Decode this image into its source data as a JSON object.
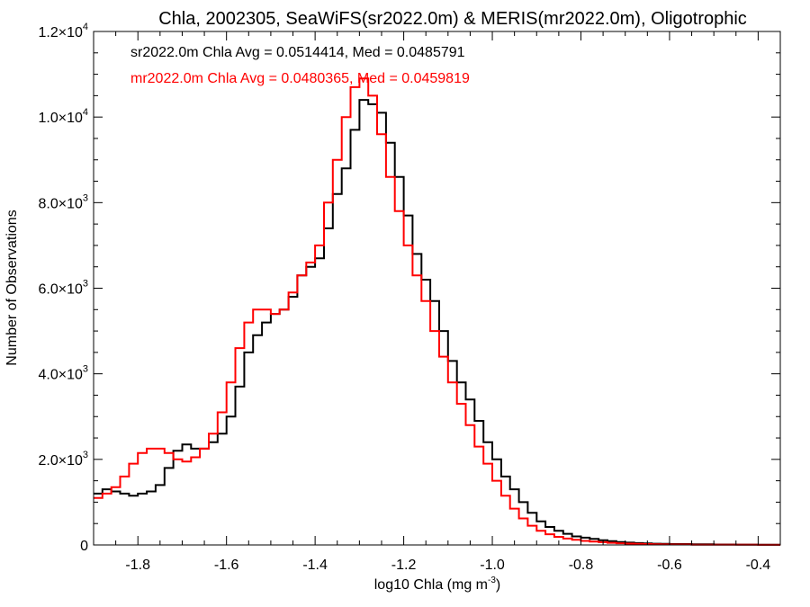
{
  "chart_data": {
    "type": "line",
    "title": "Chla, 2002305, SeaWiFS(sr2022.0m) & MERIS(mr2022.0m), Oligotrophic",
    "xlabel": "log10 Chla (mg m",
    "xlabel_sup": "-3",
    "xlabel_close": ")",
    "ylabel": "Number of Observations",
    "xlim": [
      -1.9,
      -0.35
    ],
    "ylim": [
      0,
      12000
    ],
    "x_ticks": [
      {
        "value": -1.8,
        "label": "-1.8"
      },
      {
        "value": -1.6,
        "label": "-1.6"
      },
      {
        "value": -1.4,
        "label": "-1.4"
      },
      {
        "value": -1.2,
        "label": "-1.2"
      },
      {
        "value": -1.0,
        "label": "-1.0"
      },
      {
        "value": -0.8,
        "label": "-0.8"
      },
      {
        "value": -0.6,
        "label": "-0.6"
      },
      {
        "value": -0.4,
        "label": "-0.4"
      }
    ],
    "y_ticks": [
      {
        "value": 0,
        "label": "0",
        "sup": ""
      },
      {
        "value": 2000,
        "label": "2.0×10",
        "sup": "3"
      },
      {
        "value": 4000,
        "label": "4.0×10",
        "sup": "3"
      },
      {
        "value": 6000,
        "label": "6.0×10",
        "sup": "3"
      },
      {
        "value": 8000,
        "label": "8.0×10",
        "sup": "3"
      },
      {
        "value": 10000,
        "label": "1.0×10",
        "sup": "4"
      },
      {
        "value": 12000,
        "label": "1.2×10",
        "sup": "4"
      }
    ],
    "annotations": [
      {
        "text": "sr2022.0m Chla Avg = 0.0514414, Med = 0.0485791",
        "color": "#000000"
      },
      {
        "text": "mr2022.0m Chla Avg = 0.0480365, Med = 0.0459819",
        "color": "#ff0000"
      }
    ],
    "series": [
      {
        "color": "#000000",
        "points": [
          [
            -1.9,
            1200
          ],
          [
            -1.88,
            1300
          ],
          [
            -1.86,
            1250
          ],
          [
            -1.84,
            1200
          ],
          [
            -1.82,
            1150
          ],
          [
            -1.8,
            1200
          ],
          [
            -1.78,
            1250
          ],
          [
            -1.76,
            1400
          ],
          [
            -1.74,
            1800
          ],
          [
            -1.72,
            2200
          ],
          [
            -1.7,
            2350
          ],
          [
            -1.68,
            2250
          ],
          [
            -1.66,
            2250
          ],
          [
            -1.64,
            2400
          ],
          [
            -1.62,
            2600
          ],
          [
            -1.6,
            3000
          ],
          [
            -1.58,
            3700
          ],
          [
            -1.56,
            4500
          ],
          [
            -1.54,
            4900
          ],
          [
            -1.52,
            5200
          ],
          [
            -1.5,
            5400
          ],
          [
            -1.48,
            5500
          ],
          [
            -1.46,
            5800
          ],
          [
            -1.44,
            6300
          ],
          [
            -1.42,
            6500
          ],
          [
            -1.4,
            6700
          ],
          [
            -1.38,
            7400
          ],
          [
            -1.36,
            8200
          ],
          [
            -1.34,
            8800
          ],
          [
            -1.32,
            9700
          ],
          [
            -1.3,
            10400
          ],
          [
            -1.28,
            10300
          ],
          [
            -1.26,
            10100
          ],
          [
            -1.24,
            9400
          ],
          [
            -1.22,
            8600
          ],
          [
            -1.2,
            7700
          ],
          [
            -1.18,
            6800
          ],
          [
            -1.16,
            6200
          ],
          [
            -1.14,
            5700
          ],
          [
            -1.12,
            5000
          ],
          [
            -1.1,
            4300
          ],
          [
            -1.08,
            3800
          ],
          [
            -1.06,
            3400
          ],
          [
            -1.04,
            2900
          ],
          [
            -1.02,
            2400
          ],
          [
            -1.0,
            2000
          ],
          [
            -0.98,
            1600
          ],
          [
            -0.96,
            1300
          ],
          [
            -0.94,
            1000
          ],
          [
            -0.92,
            750
          ],
          [
            -0.9,
            550
          ],
          [
            -0.88,
            420
          ],
          [
            -0.86,
            330
          ],
          [
            -0.84,
            260
          ],
          [
            -0.82,
            200
          ],
          [
            -0.8,
            170
          ],
          [
            -0.78,
            140
          ],
          [
            -0.76,
            110
          ],
          [
            -0.74,
            90
          ],
          [
            -0.72,
            70
          ],
          [
            -0.7,
            55
          ],
          [
            -0.68,
            45
          ],
          [
            -0.66,
            35
          ],
          [
            -0.64,
            30
          ],
          [
            -0.62,
            25
          ],
          [
            -0.6,
            20
          ],
          [
            -0.55,
            15
          ],
          [
            -0.5,
            10
          ],
          [
            -0.45,
            8
          ],
          [
            -0.4,
            5
          ],
          [
            -0.36,
            4
          ]
        ]
      },
      {
        "color": "#ff0000",
        "points": [
          [
            -1.9,
            1100
          ],
          [
            -1.88,
            1200
          ],
          [
            -1.86,
            1350
          ],
          [
            -1.84,
            1600
          ],
          [
            -1.82,
            1900
          ],
          [
            -1.8,
            2150
          ],
          [
            -1.78,
            2250
          ],
          [
            -1.76,
            2250
          ],
          [
            -1.74,
            2150
          ],
          [
            -1.72,
            2000
          ],
          [
            -1.7,
            1950
          ],
          [
            -1.68,
            2050
          ],
          [
            -1.66,
            2250
          ],
          [
            -1.64,
            2600
          ],
          [
            -1.62,
            3100
          ],
          [
            -1.6,
            3800
          ],
          [
            -1.58,
            4600
          ],
          [
            -1.56,
            5200
          ],
          [
            -1.54,
            5500
          ],
          [
            -1.52,
            5500
          ],
          [
            -1.5,
            5400
          ],
          [
            -1.48,
            5500
          ],
          [
            -1.46,
            5900
          ],
          [
            -1.44,
            6300
          ],
          [
            -1.42,
            6600
          ],
          [
            -1.4,
            7000
          ],
          [
            -1.38,
            8000
          ],
          [
            -1.36,
            9000
          ],
          [
            -1.34,
            10000
          ],
          [
            -1.32,
            10700
          ],
          [
            -1.3,
            10900
          ],
          [
            -1.28,
            10500
          ],
          [
            -1.26,
            9600
          ],
          [
            -1.24,
            8600
          ],
          [
            -1.22,
            7800
          ],
          [
            -1.2,
            7000
          ],
          [
            -1.18,
            6300
          ],
          [
            -1.16,
            5700
          ],
          [
            -1.14,
            5000
          ],
          [
            -1.12,
            4400
          ],
          [
            -1.1,
            3800
          ],
          [
            -1.08,
            3300
          ],
          [
            -1.06,
            2800
          ],
          [
            -1.04,
            2300
          ],
          [
            -1.02,
            1900
          ],
          [
            -1.0,
            1500
          ],
          [
            -0.98,
            1150
          ],
          [
            -0.96,
            850
          ],
          [
            -0.94,
            620
          ],
          [
            -0.92,
            450
          ],
          [
            -0.9,
            330
          ],
          [
            -0.88,
            250
          ],
          [
            -0.86,
            190
          ],
          [
            -0.84,
            150
          ],
          [
            -0.82,
            120
          ],
          [
            -0.8,
            95
          ],
          [
            -0.78,
            80
          ],
          [
            -0.76,
            65
          ],
          [
            -0.74,
            50
          ],
          [
            -0.72,
            40
          ],
          [
            -0.7,
            32
          ],
          [
            -0.68,
            26
          ],
          [
            -0.66,
            20
          ],
          [
            -0.64,
            16
          ],
          [
            -0.62,
            12
          ],
          [
            -0.6,
            10
          ],
          [
            -0.55,
            7
          ],
          [
            -0.5,
            5
          ],
          [
            -0.45,
            4
          ],
          [
            -0.4,
            3
          ],
          [
            -0.36,
            2
          ]
        ]
      }
    ]
  }
}
